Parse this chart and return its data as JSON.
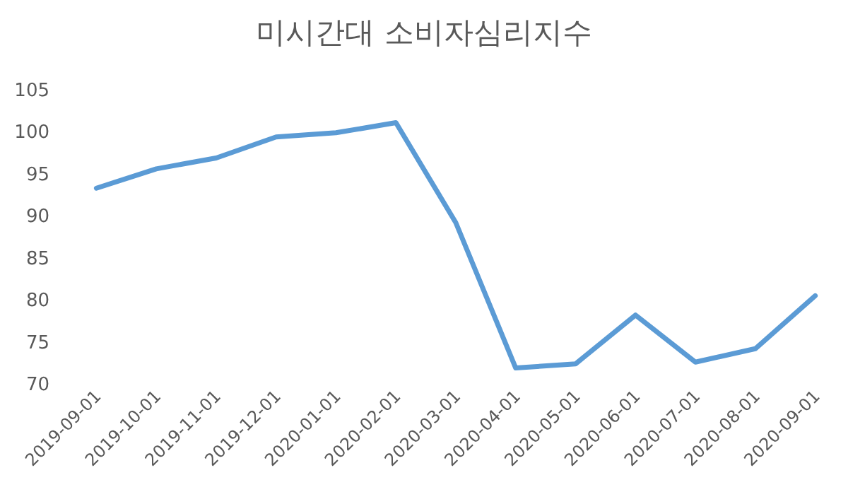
{
  "chart_data": {
    "type": "line",
    "title": "미시간대 소비자심리지수",
    "categories": [
      "2019-09-01",
      "2019-10-01",
      "2019-11-01",
      "2019-12-01",
      "2020-01-01",
      "2020-02-01",
      "2020-03-01",
      "2020-04-01",
      "2020-05-01",
      "2020-06-01",
      "2020-07-01",
      "2020-08-01",
      "2020-09-01"
    ],
    "series": [
      {
        "color": "#5b9bd5",
        "values": [
          93.2,
          95.5,
          96.8,
          99.3,
          99.8,
          101,
          89.1,
          71.8,
          72.3,
          78.1,
          72.5,
          74.1,
          80.4
        ]
      }
    ],
    "ylim": [
      70,
      105
    ],
    "yticks": [
      70,
      75,
      80,
      85,
      90,
      95,
      100,
      105
    ],
    "grid": false,
    "marker": "none",
    "line_style": "solid"
  }
}
